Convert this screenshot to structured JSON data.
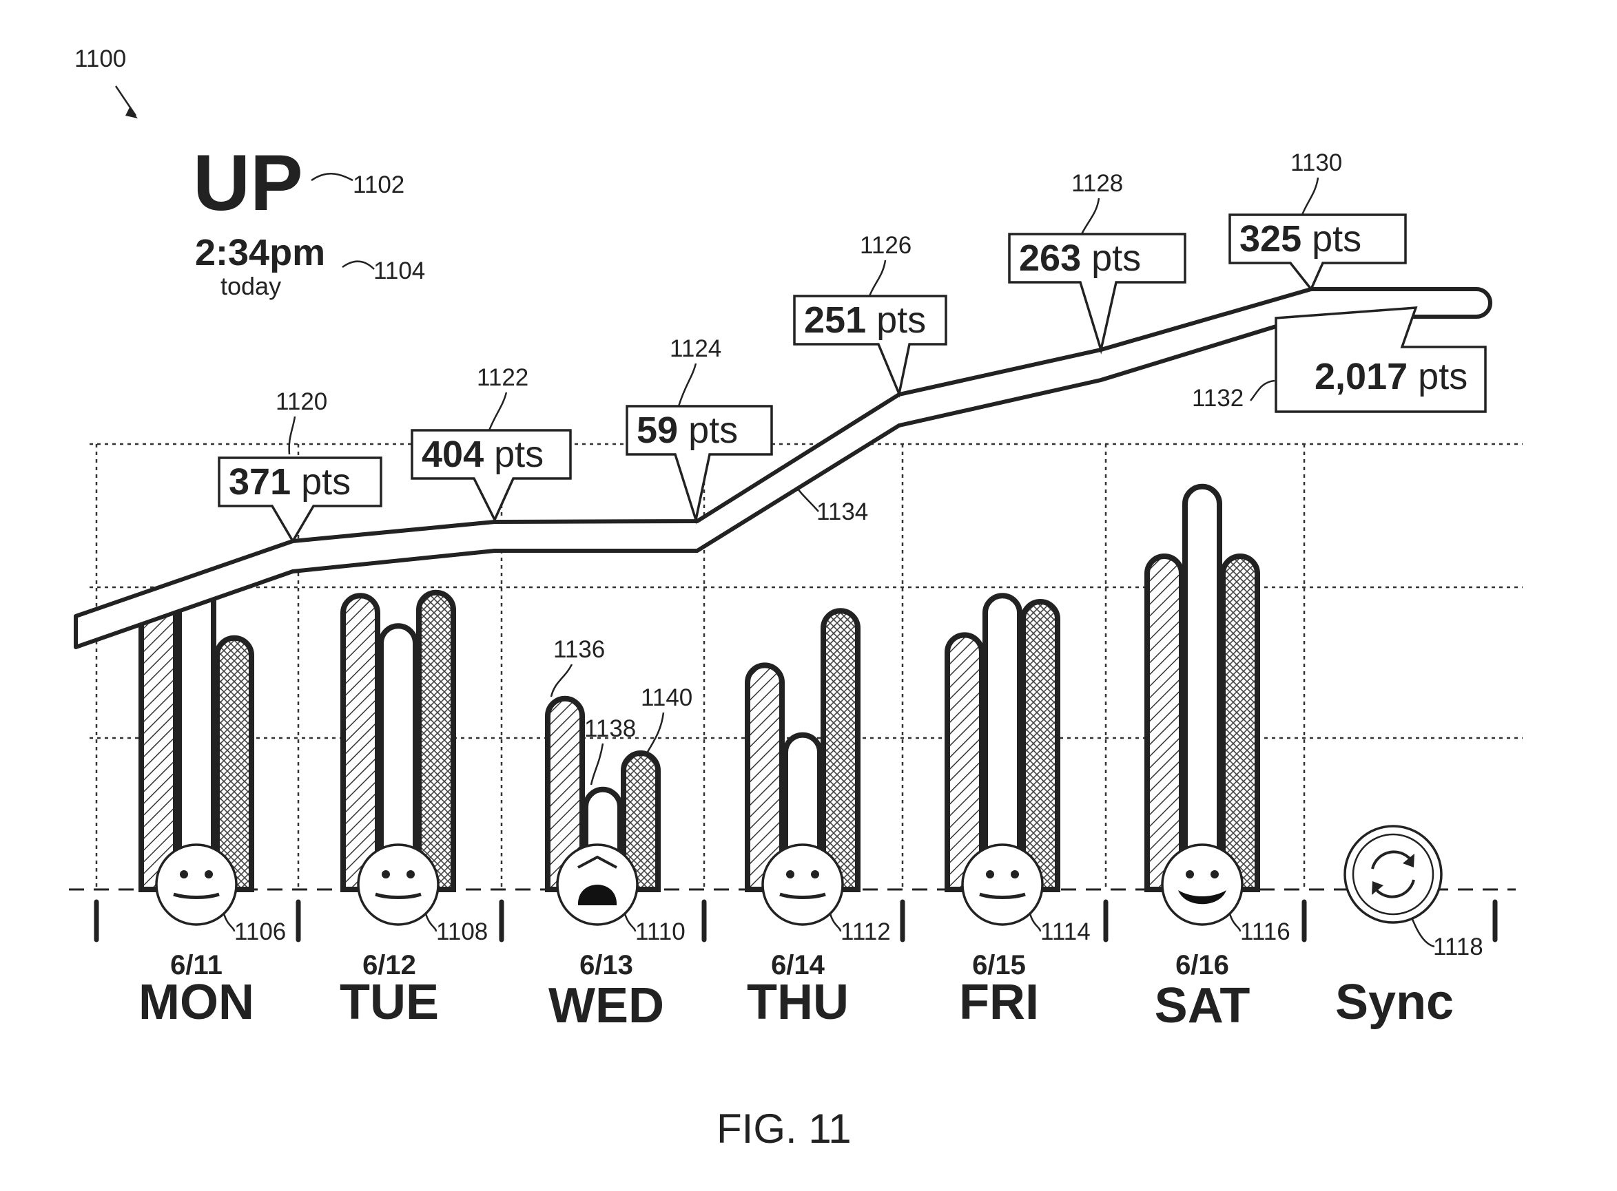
{
  "figure": {
    "label": "FIG. 11",
    "ref_main": "1100"
  },
  "header": {
    "title": "UP",
    "title_ref": "1102",
    "time": "2:34pm",
    "time_sub": "today",
    "time_ref": "1104"
  },
  "days": [
    {
      "day": "MON",
      "date": "6/11",
      "face": "neutral",
      "face_ref": "1106",
      "bars": [
        0.98,
        1.02,
        0.83
      ]
    },
    {
      "day": "TUE",
      "date": "6/12",
      "face": "neutral",
      "face_ref": "1108",
      "bars": [
        0.97,
        0.87,
        0.98
      ]
    },
    {
      "day": "WED",
      "date": "6/13",
      "face": "distressed",
      "face_ref": "1110",
      "bars": [
        0.63,
        0.33,
        0.45
      ]
    },
    {
      "day": "THU",
      "date": "6/14",
      "face": "neutral",
      "face_ref": "1112",
      "bars": [
        0.74,
        0.51,
        0.92
      ]
    },
    {
      "day": "FRI",
      "date": "6/15",
      "face": "neutral",
      "face_ref": "1114",
      "bars": [
        0.84,
        0.97,
        0.95
      ]
    },
    {
      "day": "SAT",
      "date": "6/16",
      "face": "happy",
      "face_ref": "1116",
      "bars": [
        1.1,
        1.33,
        1.1
      ]
    }
  ],
  "sync": {
    "label": "Sync",
    "ref": "1118",
    "icon": "sync-icon"
  },
  "callouts": [
    {
      "value": "371",
      "unit": "pts",
      "ref": "1120"
    },
    {
      "value": "404",
      "unit": "pts",
      "ref": "1122"
    },
    {
      "value": "59",
      "unit": "pts",
      "ref": "1124"
    },
    {
      "value": "251",
      "unit": "pts",
      "ref": "1126"
    },
    {
      "value": "263",
      "unit": "pts",
      "ref": "1128"
    },
    {
      "value": "325",
      "unit": "pts",
      "ref": "1130"
    }
  ],
  "total": {
    "value": "2,017",
    "unit": "pts",
    "ref": "1132"
  },
  "trend_ref": "1134",
  "bar_refs": [
    "1136",
    "1138",
    "1140"
  ],
  "colors": {
    "ink": "#222222",
    "paper": "#ffffff"
  }
}
